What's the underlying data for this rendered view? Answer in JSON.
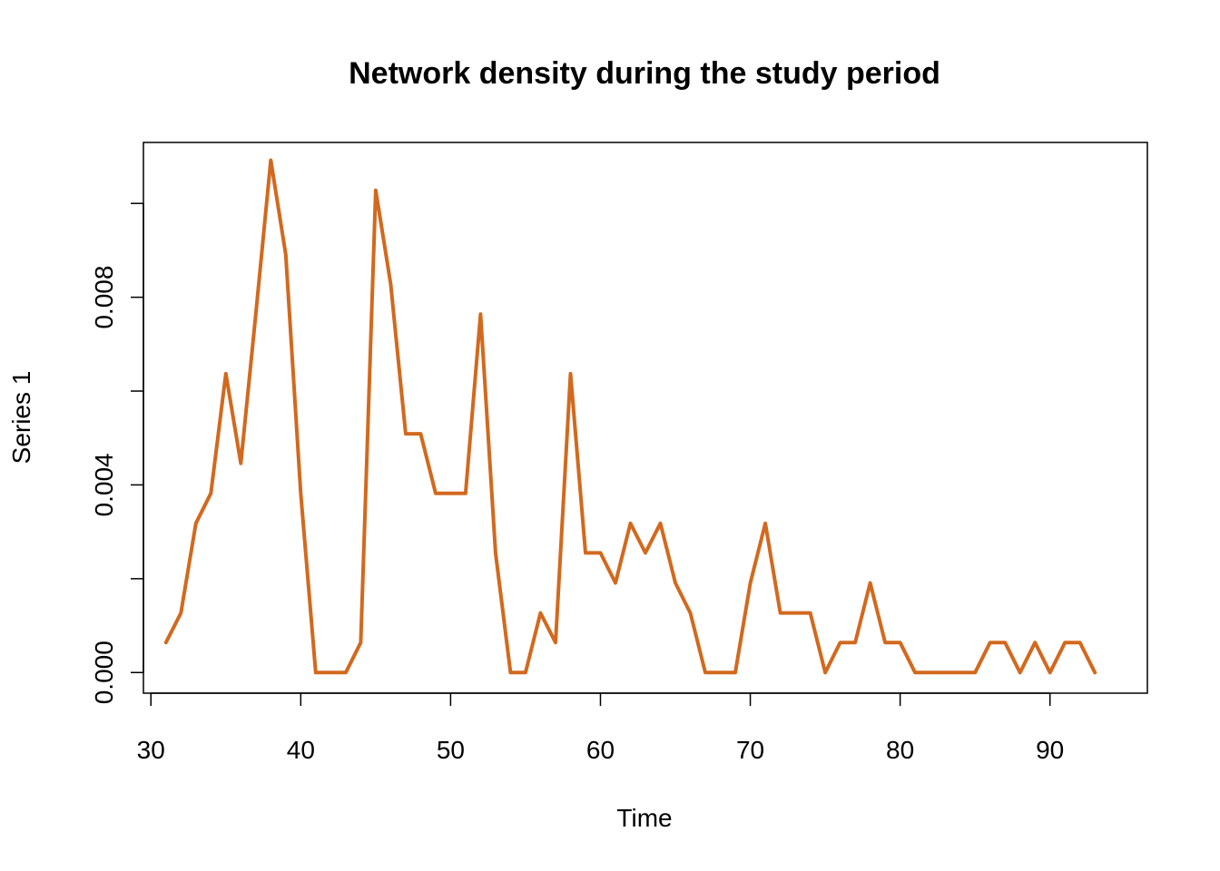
{
  "chart_data": {
    "type": "line",
    "title": "Network density during the study period",
    "xlabel": "Time",
    "ylabel": "Series 1",
    "xlim": [
      29.5,
      96.5
    ],
    "ylim": [
      -0.00044,
      0.0113
    ],
    "xticks": [
      30,
      40,
      50,
      60,
      70,
      80,
      90
    ],
    "xtick_labels": [
      "30",
      "40",
      "50",
      "60",
      "70",
      "80",
      "90"
    ],
    "yticks": [
      0.0,
      0.002,
      0.004,
      0.006,
      0.008,
      0.01
    ],
    "ytick_labels": [
      "0.000",
      "",
      "0.004",
      "",
      "0.008",
      ""
    ],
    "line_color": "#D2691E",
    "grid": false,
    "x": [
      31,
      32,
      33,
      34,
      35,
      36,
      37,
      38,
      39,
      40,
      41,
      42,
      43,
      44,
      45,
      46,
      47,
      48,
      49,
      50,
      51,
      52,
      53,
      54,
      55,
      56,
      57,
      58,
      59,
      60,
      61,
      62,
      63,
      64,
      65,
      66,
      67,
      68,
      69,
      70,
      71,
      72,
      73,
      74,
      75,
      76,
      77,
      78,
      79,
      80,
      81,
      82,
      83,
      84,
      85,
      86,
      87,
      88,
      89,
      90,
      91,
      92,
      93
    ],
    "series": [
      {
        "values": [
          0.00064,
          0.00127,
          0.00318,
          0.00382,
          0.00637,
          0.00446,
          0.00764,
          0.01092,
          0.00891,
          0.00382,
          0.0,
          0.0,
          0.0,
          0.00064,
          0.01028,
          0.00828,
          0.00509,
          0.00509,
          0.00382,
          0.00382,
          0.00382,
          0.00764,
          0.00255,
          0.0,
          0.0,
          0.00127,
          0.00064,
          0.00637,
          0.00255,
          0.00255,
          0.00191,
          0.00318,
          0.00255,
          0.00318,
          0.00191,
          0.00127,
          0.0,
          0.0,
          0.0,
          0.00191,
          0.00318,
          0.00127,
          0.00127,
          0.00127,
          0.0,
          0.00064,
          0.00064,
          0.00191,
          0.00064,
          0.00064,
          0.0,
          0.0,
          0.0,
          0.0,
          0.0,
          0.00064,
          0.00064,
          0.0,
          0.00064,
          0.0,
          0.00064,
          0.00064,
          0.0
        ]
      }
    ]
  }
}
